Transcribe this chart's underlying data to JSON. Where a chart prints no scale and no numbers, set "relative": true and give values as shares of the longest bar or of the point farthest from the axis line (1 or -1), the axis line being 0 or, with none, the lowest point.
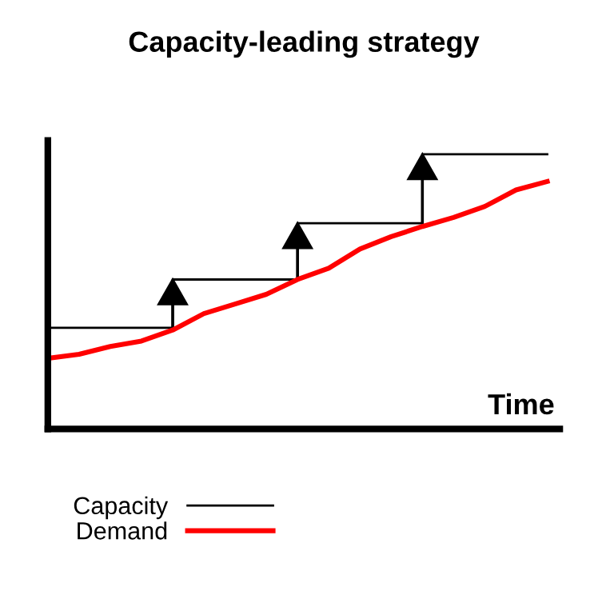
{
  "chart_data": {
    "type": "line",
    "title": "Capacity-leading strategy",
    "xlabel": "Time",
    "relative": true,
    "legend": "bottom",
    "categories": [
      null,
      null,
      null,
      null,
      null,
      null,
      null,
      null,
      null,
      null,
      null,
      null,
      null,
      null,
      null,
      null,
      null
    ],
    "series": [
      {
        "name": "Capacity",
        "type": "step",
        "color": "#000000",
        "values": [
          0.368,
          0.368,
          0.368,
          0.368,
          0.544,
          0.544,
          0.544,
          0.544,
          0.749,
          0.749,
          0.749,
          0.749,
          1,
          1,
          1,
          1,
          1
        ]
      },
      {
        "name": "Demand",
        "color": "#ff0000",
        "values": [
          0.257,
          0.272,
          0.3,
          0.32,
          0.36,
          0.42,
          0.455,
          0.49,
          0.544,
          0.585,
          0.655,
          0.7,
          0.737,
          0.77,
          0.81,
          0.87,
          0.901
        ]
      }
    ]
  }
}
